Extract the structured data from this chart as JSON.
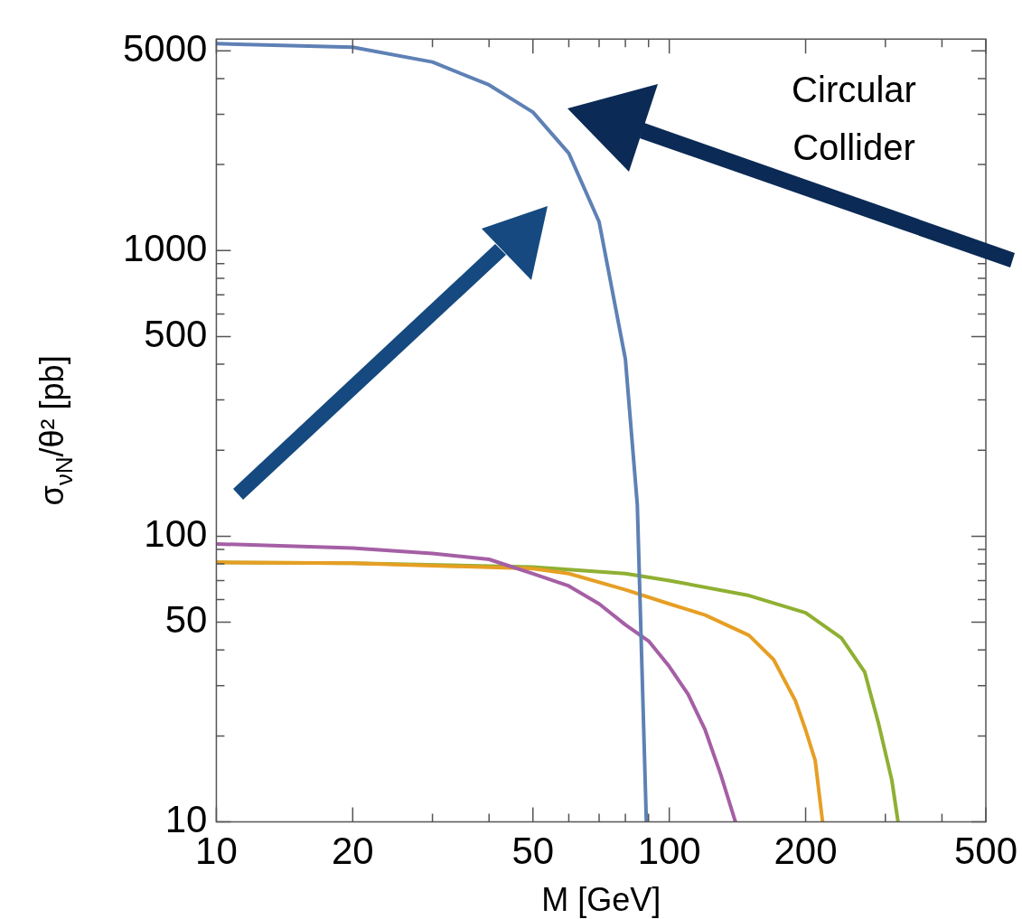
{
  "chart_data": {
    "type": "line",
    "xlabel": "M [GeV]",
    "ylabel": "σ$_{νN}$/θ² [pb]",
    "log": "xy",
    "grid": false,
    "legend": false,
    "marker": "none",
    "line_style": "solid",
    "xlim": [
      10,
      500
    ],
    "ylim": [
      10,
      5500
    ],
    "xticks": [
      10,
      20,
      {
        "value": 30,
        "label": null
      },
      {
        "value": 40,
        "label": null
      },
      50,
      {
        "value": 60,
        "label": null
      },
      {
        "value": 70,
        "label": null
      },
      {
        "value": 80,
        "label": null
      },
      {
        "value": 90,
        "label": null
      },
      100,
      200,
      {
        "value": 300,
        "label": null
      },
      {
        "value": 400,
        "label": null
      },
      500
    ],
    "yticks": [
      10,
      {
        "value": 20,
        "label": null
      },
      {
        "value": 30,
        "label": null
      },
      {
        "value": 40,
        "label": null
      },
      50,
      {
        "value": 60,
        "label": null
      },
      {
        "value": 70,
        "label": null
      },
      {
        "value": 80,
        "label": null
      },
      {
        "value": 90,
        "label": null
      },
      100,
      {
        "value": 200,
        "label": null
      },
      {
        "value": 300,
        "label": null
      },
      {
        "value": 400,
        "label": null
      },
      500,
      {
        "value": 600,
        "label": null
      },
      {
        "value": 700,
        "label": null
      },
      {
        "value": 800,
        "label": null
      },
      {
        "value": 900,
        "label": null
      },
      1000,
      {
        "value": 2000,
        "label": null
      },
      {
        "value": 3000,
        "label": null
      },
      {
        "value": 4000,
        "label": null
      },
      5000
    ],
    "annotations": [
      "Circular Collider"
    ],
    "series": [
      {
        "color": "#5e81b5",
        "x": [
          10,
          20,
          30,
          40,
          50,
          60,
          70,
          80,
          85,
          89
        ],
        "values": [
          5300,
          5150,
          4570,
          3800,
          3050,
          2190,
          1260,
          417,
          129,
          10
        ]
      },
      {
        "color": "#a55fa5",
        "x": [
          10,
          20,
          30,
          40,
          50,
          60,
          70,
          80,
          90,
          100,
          110,
          120,
          130,
          140
        ],
        "values": [
          94,
          91,
          87,
          83,
          74,
          67,
          58,
          49,
          43,
          35,
          28,
          21,
          14.6,
          10
        ]
      },
      {
        "color": "#e69f24",
        "x": [
          10,
          20,
          50,
          60,
          80,
          100,
          120,
          150,
          170,
          190,
          200,
          210,
          218
        ],
        "values": [
          81,
          80.5,
          77,
          74,
          65,
          58,
          53,
          45,
          37,
          26.5,
          21,
          16.4,
          10
        ]
      },
      {
        "color": "#8fb032",
        "x": [
          10,
          20,
          50,
          80,
          100,
          150,
          200,
          240,
          270,
          290,
          310,
          320
        ],
        "values": [
          81,
          80.5,
          78,
          74,
          70,
          62,
          54,
          44,
          33.5,
          22,
          14,
          10
        ]
      }
    ]
  }
}
